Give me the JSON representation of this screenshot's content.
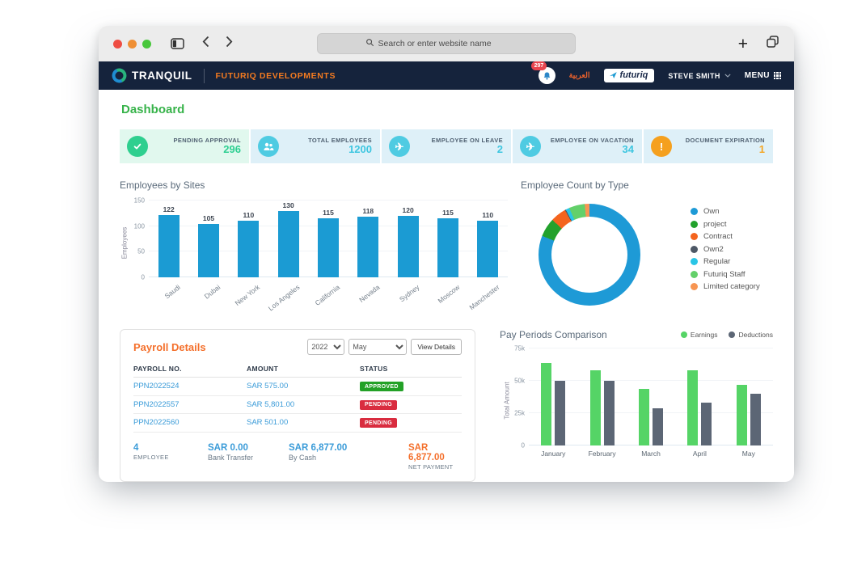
{
  "browser": {
    "search_placeholder": "Search or enter website name"
  },
  "navbar": {
    "brand": "TRANQUIL",
    "company": "FUTURIQ DEVELOPMENTS",
    "notification_count": "297",
    "language": "العربية",
    "partner_logo": "futuriq",
    "user_name": "STEVE SMITH",
    "menu_label": "MENU"
  },
  "page": {
    "title": "Dashboard"
  },
  "kpis": [
    {
      "icon": "check-icon",
      "label": "PENDING APPROVAL",
      "value": "296",
      "value_color": "#2fcf92",
      "icon_bg": "#2fcf8f",
      "card_bg": "#e1f8ee"
    },
    {
      "icon": "people-icon",
      "label": "TOTAL EMPLOYEES",
      "value": "1200",
      "value_color": "#3ec6e0",
      "icon_bg": "#4fcbe2",
      "card_bg": "#def0f8"
    },
    {
      "icon": "plane-icon",
      "label": "EMPLOYEE ON LEAVE",
      "value": "2",
      "value_color": "#3ec6e0",
      "icon_bg": "#4fcbe2",
      "card_bg": "#def0f8"
    },
    {
      "icon": "plane-icon",
      "label": "EMPLOYEE ON VACATION",
      "value": "34",
      "value_color": "#3ec6e0",
      "icon_bg": "#4fcbe2",
      "card_bg": "#def0f8"
    },
    {
      "icon": "alert-icon",
      "label": "DOCUMENT EXPIRATION",
      "value": "1",
      "value_color": "#f5a623",
      "icon_bg": "#f5a01e",
      "card_bg": "#def0f8"
    }
  ],
  "payroll": {
    "title": "Payroll Details",
    "year": "2022",
    "month": "May",
    "view_details_label": "View Details",
    "columns": [
      "PAYROLL NO.",
      "AMOUNT",
      "STATUS"
    ],
    "rows": [
      {
        "no": "PPN2022524",
        "amount": "SAR 575.00",
        "status": "APPROVED",
        "status_color": "#23a127"
      },
      {
        "no": "PPN2022557",
        "amount": "SAR 5,801.00",
        "status": "PENDING",
        "status_color": "#d92c3f"
      },
      {
        "no": "PPN2022560",
        "amount": "SAR 501.00",
        "status": "PENDING",
        "status_color": "#d92c3f"
      }
    ],
    "summary": [
      {
        "value": "4",
        "label": "EMPLOYEE",
        "color": "#3a9bd8"
      },
      {
        "value": "SAR 0.00",
        "label": "Bank Transfer",
        "color": "#3a9bd8"
      },
      {
        "value": "SAR 6,877.00",
        "label": "By Cash",
        "color": "#3a9bd8"
      },
      {
        "value": "SAR 6,877.00",
        "label": "NET PAYMENT",
        "color": "#f4702c"
      }
    ]
  },
  "chart_data": [
    {
      "type": "bar",
      "title": "Employees by Sites",
      "categories": [
        "Saudi",
        "Dubai",
        "New York",
        "Los Angeles",
        "California",
        "Nevada",
        "Sydney",
        "Moscow",
        "Manchester"
      ],
      "values": [
        122,
        105,
        110,
        130,
        115,
        118,
        120,
        115,
        110
      ],
      "xlabel": "",
      "ylabel": "Employees",
      "ylim": [
        0,
        150
      ],
      "yticks": [
        0,
        50,
        100,
        150
      ],
      "bar_color": "#1b9bd3",
      "grid": true,
      "legend_position": "none"
    },
    {
      "type": "pie",
      "title": "Employee Count by Type",
      "labels": [
        "Own",
        "project",
        "Contract",
        "Own2",
        "Regular",
        "Futuriq Staff",
        "Limited category"
      ],
      "values": [
        81,
        6,
        5,
        0.3,
        1.2,
        5,
        1.5
      ],
      "unit": "percent",
      "colors": [
        "#1e9ad6",
        "#22a12c",
        "#f4641e",
        "#4d5866",
        "#29c5e6",
        "#63d06a",
        "#f79552"
      ],
      "donut": true,
      "legend_position": "right"
    },
    {
      "type": "bar",
      "title": "Pay Periods Comparison",
      "categories": [
        "January",
        "February",
        "March",
        "April",
        "May"
      ],
      "series": [
        {
          "name": "Earnings",
          "color": "#55d466",
          "values": [
            64000,
            58000,
            44000,
            58000,
            47000
          ]
        },
        {
          "name": "Deductions",
          "color": "#5c6675",
          "values": [
            50000,
            50000,
            29000,
            33000,
            40000
          ]
        }
      ],
      "xlabel": "",
      "ylabel": "Total Amount",
      "ylim": [
        0,
        75000
      ],
      "yticks": [
        "0",
        "25k",
        "50k",
        "75k"
      ],
      "grid": true,
      "legend_position": "top-right"
    }
  ]
}
